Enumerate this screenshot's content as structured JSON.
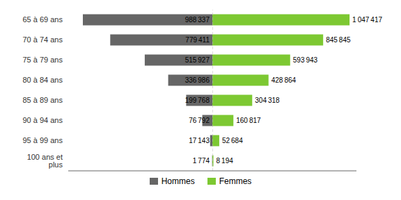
{
  "chart_data": {
    "type": "bar",
    "orientation": "horizontal",
    "categories": [
      "65 à 69 ans",
      "70 à 74 ans",
      "75 à 79 ans",
      "80 à 84 ans",
      "85 à 89 ans",
      "90 à 94 ans",
      "95 à 99 ans",
      "100 ans et plus"
    ],
    "series": [
      {
        "name": "Hommes",
        "color": "#666666",
        "values": [
          988337,
          779411,
          515927,
          336986,
          199768,
          76792,
          17143,
          1774
        ],
        "value_labels": [
          "988 337",
          "779 411",
          "515 927",
          "336 986",
          "199 768",
          "76 792",
          "17 143",
          "1 774"
        ]
      },
      {
        "name": "Femmes",
        "color": "#7dc832",
        "values": [
          1047417,
          845845,
          593943,
          428864,
          304318,
          160817,
          52684,
          8194
        ],
        "value_labels": [
          "1 047 417",
          "845 845",
          "593 943",
          "428 864",
          "304 318",
          "160 817",
          "52 684",
          "8 194"
        ]
      }
    ],
    "xlim": [
      0,
      1100000
    ],
    "data_labels": true,
    "tick_labels": "y",
    "legend": "bottom",
    "grid": false
  }
}
